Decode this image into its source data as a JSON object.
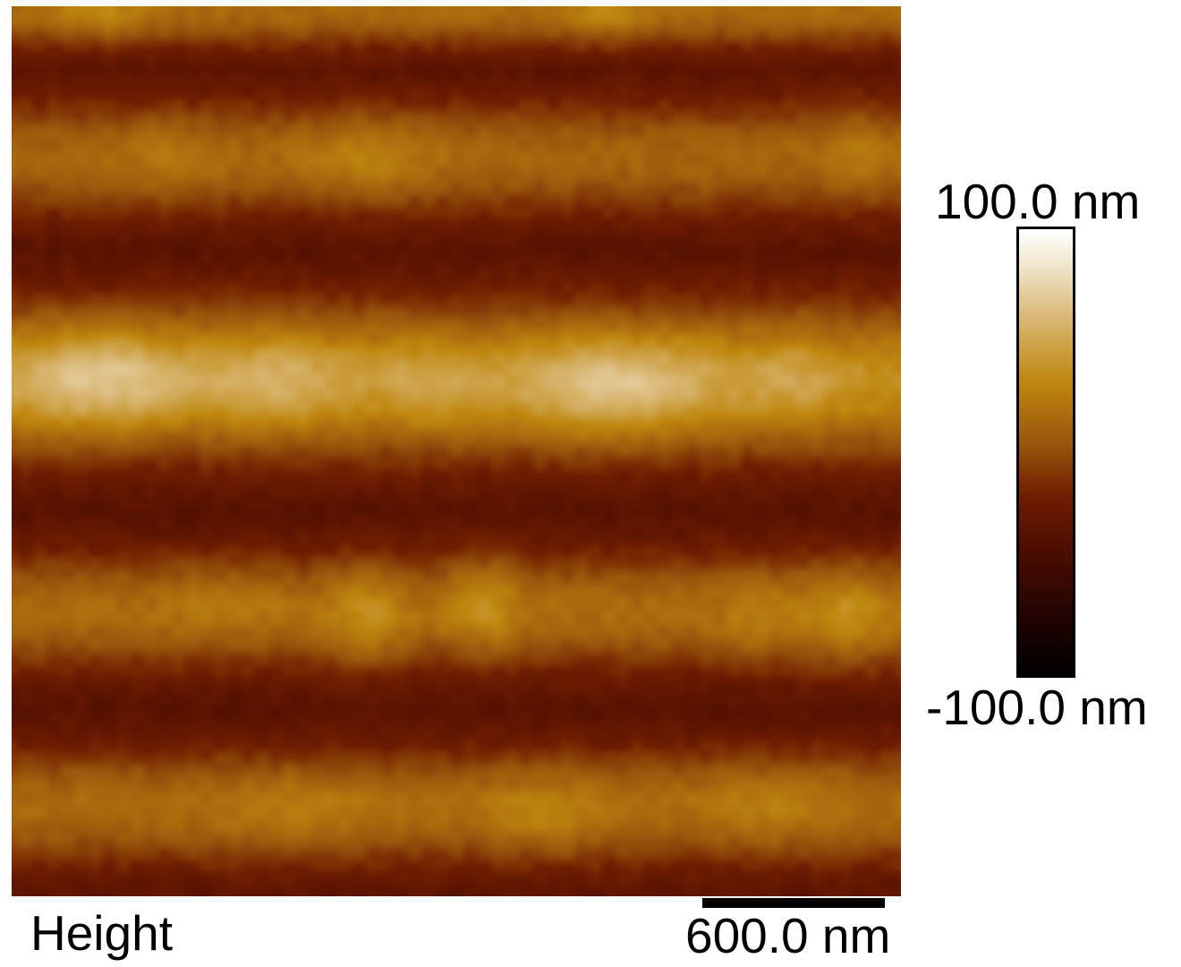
{
  "image": {
    "channel": "Height",
    "scale_bar": "600.0 nm",
    "pattern": "horizontal stripes of raised (bright) and recessed (dark) regions"
  },
  "color_scale": {
    "max_label": "100.0 nm",
    "min_label": "-100.0 nm",
    "colors": {
      "high": "#ffffff",
      "mid_high": "#bf870f",
      "mid": "#7a2a00",
      "low": "#000000"
    }
  }
}
